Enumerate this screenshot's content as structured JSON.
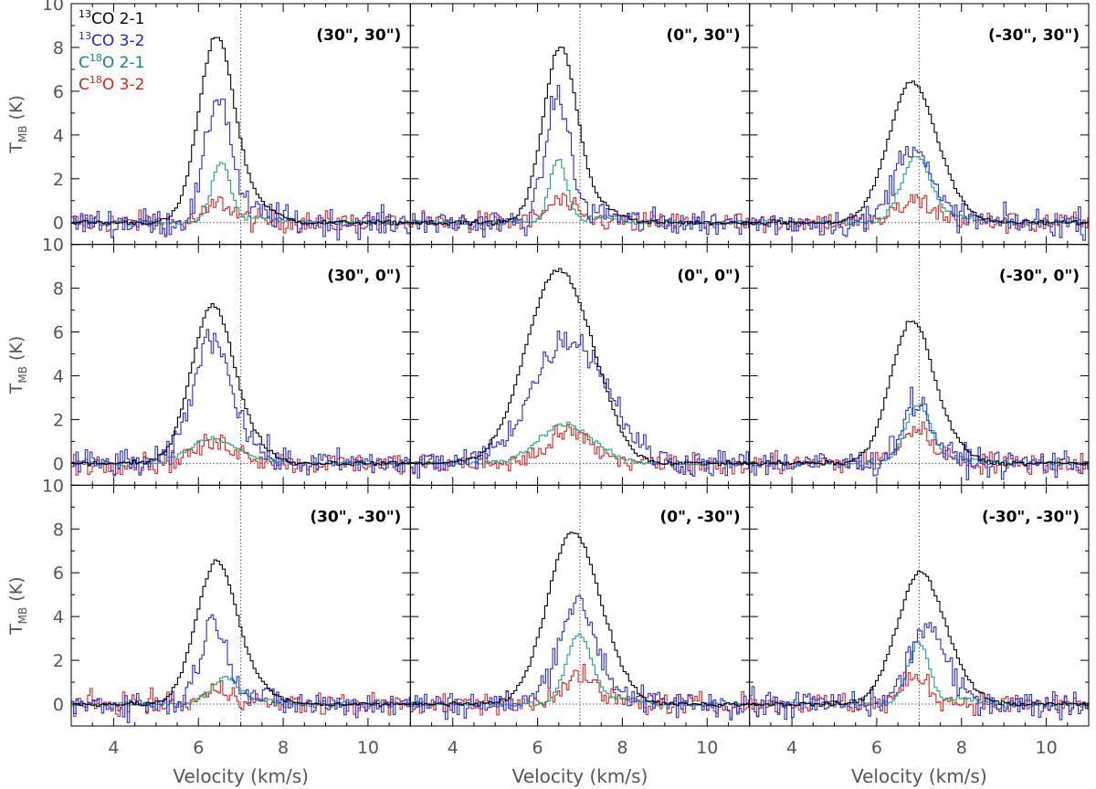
{
  "chart_data": {
    "type": "line",
    "layout": "3x3 grid of spectra sharing axes",
    "xlabel": "Velocity (km/s)",
    "ylabel": "T",
    "ylabel_sub": "MB",
    "ylabel_unit": "(K)",
    "xlim": [
      3,
      11
    ],
    "ylim": [
      -1,
      10
    ],
    "xticks": [
      4,
      6,
      8,
      10
    ],
    "yticks": [
      0,
      2,
      4,
      6,
      8,
      10
    ],
    "vline": 7.0,
    "hline": 0,
    "legend": {
      "placement": "top-left of first panel",
      "entries": [
        {
          "sup": "13",
          "pre": "",
          "post": "CO 2-1",
          "color": "#000000"
        },
        {
          "sup": "13",
          "pre": "",
          "post": "CO 3-2",
          "color": "#1f1fe0"
        },
        {
          "sup": "18",
          "pre": "C",
          "post": "O 2-1",
          "color": "#0a8a7a"
        },
        {
          "sup": "18",
          "pre": "C",
          "post": "O 3-2",
          "color": "#e01f1f"
        }
      ]
    },
    "series_colors": {
      "co13_21": "#000000",
      "co13_32": "#2a2ae6",
      "c18o_21": "#1aa67e",
      "c18o_32": "#e02424"
    },
    "panels": [
      {
        "label": "(30\", 30\")",
        "row": 0,
        "col": 0,
        "co13_21": {
          "peak": 8.5,
          "center": 6.4,
          "width": 0.42
        },
        "co13_32": {
          "peak": 5.8,
          "center": 6.45,
          "width": 0.3
        },
        "c18o_21": {
          "peak": 2.8,
          "center": 6.5,
          "width": 0.22
        },
        "c18o_32": {
          "peak": 0.9,
          "center": 6.5,
          "width": 0.3
        }
      },
      {
        "label": "(0\", 30\")",
        "row": 0,
        "col": 1,
        "co13_21": {
          "peak": 8.0,
          "center": 6.5,
          "width": 0.4
        },
        "co13_32": {
          "peak": 5.8,
          "center": 6.45,
          "width": 0.28
        },
        "c18o_21": {
          "peak": 2.9,
          "center": 6.45,
          "width": 0.2
        },
        "c18o_32": {
          "peak": 1.0,
          "center": 6.5,
          "width": 0.3
        }
      },
      {
        "label": "(-30\", 30\")",
        "row": 0,
        "col": 2,
        "co13_21": {
          "peak": 6.4,
          "center": 6.8,
          "width": 0.55
        },
        "co13_32": {
          "peak": 3.6,
          "center": 6.8,
          "width": 0.4
        },
        "c18o_21": {
          "peak": 3.0,
          "center": 6.9,
          "width": 0.35
        },
        "c18o_32": {
          "peak": 1.0,
          "center": 6.9,
          "width": 0.4
        }
      },
      {
        "label": "(30\", 0\")",
        "row": 1,
        "col": 0,
        "co13_21": {
          "peak": 7.2,
          "center": 6.3,
          "width": 0.5
        },
        "co13_32": {
          "peak": 5.8,
          "center": 6.3,
          "width": 0.45
        },
        "c18o_21": {
          "peak": 1.1,
          "center": 6.3,
          "width": 0.55
        },
        "c18o_32": {
          "peak": 0.9,
          "center": 6.4,
          "width": 0.55
        }
      },
      {
        "label": "(0\", 0\")",
        "row": 1,
        "col": 1,
        "co13_21": {
          "peak": 8.8,
          "center": 6.45,
          "width": 0.75
        },
        "co13_32": {
          "peak": 5.7,
          "center": 6.7,
          "width": 0.85
        },
        "c18o_21": {
          "peak": 1.8,
          "center": 6.6,
          "width": 0.6
        },
        "c18o_32": {
          "peak": 1.4,
          "center": 6.7,
          "width": 0.5
        }
      },
      {
        "label": "(-30\", 0\")",
        "row": 1,
        "col": 2,
        "co13_21": {
          "peak": 6.5,
          "center": 6.8,
          "width": 0.5
        },
        "co13_32": {
          "peak": 2.8,
          "center": 6.9,
          "width": 0.35
        },
        "c18o_21": {
          "peak": 2.7,
          "center": 6.95,
          "width": 0.3
        },
        "c18o_32": {
          "peak": 1.5,
          "center": 6.9,
          "width": 0.4
        }
      },
      {
        "label": "(30\", -30\")",
        "row": 2,
        "col": 0,
        "co13_21": {
          "peak": 6.5,
          "center": 6.4,
          "width": 0.48
        },
        "co13_32": {
          "peak": 3.8,
          "center": 6.35,
          "width": 0.33
        },
        "c18o_21": {
          "peak": 1.2,
          "center": 6.6,
          "width": 0.35
        },
        "c18o_32": {
          "peak": 0.6,
          "center": 6.5,
          "width": 0.4
        }
      },
      {
        "label": "(0\", -30\")",
        "row": 2,
        "col": 1,
        "co13_21": {
          "peak": 7.9,
          "center": 6.8,
          "width": 0.6
        },
        "co13_32": {
          "peak": 4.6,
          "center": 6.9,
          "width": 0.45
        },
        "c18o_21": {
          "peak": 3.2,
          "center": 6.95,
          "width": 0.3
        },
        "c18o_32": {
          "peak": 1.3,
          "center": 6.9,
          "width": 0.4
        }
      },
      {
        "label": "(-30\", -30\")",
        "row": 2,
        "col": 2,
        "co13_21": {
          "peak": 6.0,
          "center": 7.0,
          "width": 0.55
        },
        "co13_32": {
          "peak": 3.6,
          "center": 7.15,
          "width": 0.4
        },
        "c18o_21": {
          "peak": 2.8,
          "center": 6.95,
          "width": 0.25
        },
        "c18o_32": {
          "peak": 1.3,
          "center": 6.9,
          "width": 0.3
        }
      }
    ]
  }
}
